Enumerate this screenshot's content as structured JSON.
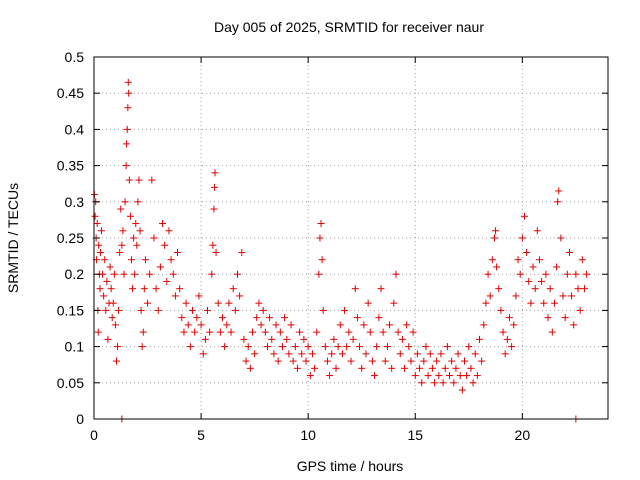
{
  "chart_data": {
    "type": "scatter",
    "title": "Day 005 of 2025, SRMTID for receiver naur",
    "xlabel": "GPS time / hours",
    "ylabel": "SRMTID / TECUs",
    "xlim": [
      0,
      24
    ],
    "ylim": [
      0,
      0.5
    ],
    "xticks": [
      0,
      5,
      10,
      15,
      20
    ],
    "yticks": [
      0,
      0.05,
      0.1,
      0.15,
      0.2,
      0.25,
      0.3,
      0.35,
      0.4,
      0.45,
      0.5
    ],
    "xtick_labels": [
      "0",
      "5",
      "10",
      "15",
      "20"
    ],
    "ytick_labels": [
      "0",
      "0.05",
      "0.1",
      "0.15",
      "0.2",
      "0.25",
      "0.3",
      "0.35",
      "0.4",
      "0.45",
      "0.5"
    ],
    "grid": true,
    "marker": "plus",
    "color": "#e00000",
    "series": [
      {
        "name": "SRMTID",
        "points": [
          [
            0.02,
            0.31
          ],
          [
            0.05,
            0.28
          ],
          [
            0.08,
            0.3
          ],
          [
            0.1,
            0.25
          ],
          [
            0.12,
            0.22
          ],
          [
            0.15,
            0.27
          ],
          [
            0.18,
            0.15
          ],
          [
            0.2,
            0.12
          ],
          [
            0.22,
            0.24
          ],
          [
            0.25,
            0.2
          ],
          [
            0.28,
            0.18
          ],
          [
            0.3,
            0.23
          ],
          [
            0.35,
            0.26
          ],
          [
            0.4,
            0.2
          ],
          [
            0.45,
            0.17
          ],
          [
            0.5,
            0.22
          ],
          [
            0.55,
            0.15
          ],
          [
            0.6,
            0.19
          ],
          [
            0.65,
            0.11
          ],
          [
            0.7,
            0.16
          ],
          [
            0.75,
            0.21
          ],
          [
            0.8,
            0.18
          ],
          [
            0.85,
            0.14
          ],
          [
            0.9,
            0.16
          ],
          [
            0.95,
            0.2
          ],
          [
            1.0,
            0.13
          ],
          [
            1.05,
            0.08
          ],
          [
            1.1,
            0.1
          ],
          [
            1.15,
            0.15
          ],
          [
            1.2,
            0.23
          ],
          [
            1.25,
            0.29
          ],
          [
            1.3,
            0.24
          ],
          [
            1.35,
            0.26
          ],
          [
            1.4,
            0.2
          ],
          [
            1.45,
            0.3
          ],
          [
            1.5,
            0.35
          ],
          [
            1.52,
            0.38
          ],
          [
            1.55,
            0.4
          ],
          [
            1.58,
            0.43
          ],
          [
            1.6,
            0.465
          ],
          [
            1.62,
            0.45
          ],
          [
            1.65,
            0.33
          ],
          [
            1.7,
            0.28
          ],
          [
            1.75,
            0.22
          ],
          [
            1.8,
            0.18
          ],
          [
            1.85,
            0.25
          ],
          [
            1.9,
            0.2
          ],
          [
            1.95,
            0.27
          ],
          [
            2.0,
            0.24
          ],
          [
            2.05,
            0.3
          ],
          [
            2.1,
            0.33
          ],
          [
            2.15,
            0.26
          ],
          [
            2.2,
            0.15
          ],
          [
            2.25,
            0.1
          ],
          [
            2.3,
            0.12
          ],
          [
            2.35,
            0.18
          ],
          [
            2.4,
            0.22
          ],
          [
            2.5,
            0.16
          ],
          [
            2.6,
            0.2
          ],
          [
            2.7,
            0.33
          ],
          [
            2.8,
            0.25
          ],
          [
            2.9,
            0.18
          ],
          [
            3.0,
            0.15
          ],
          [
            3.1,
            0.21
          ],
          [
            3.2,
            0.27
          ],
          [
            3.3,
            0.24
          ],
          [
            3.4,
            0.19
          ],
          [
            3.5,
            0.26
          ],
          [
            3.6,
            0.22
          ],
          [
            3.7,
            0.2
          ],
          [
            3.8,
            0.17
          ],
          [
            3.9,
            0.23
          ],
          [
            4.0,
            0.18
          ],
          [
            4.1,
            0.14
          ],
          [
            4.2,
            0.12
          ],
          [
            4.3,
            0.16
          ],
          [
            4.4,
            0.13
          ],
          [
            4.5,
            0.1
          ],
          [
            4.6,
            0.15
          ],
          [
            4.7,
            0.12
          ],
          [
            4.8,
            0.14
          ],
          [
            4.9,
            0.17
          ],
          [
            5.0,
            0.13
          ],
          [
            5.1,
            0.09
          ],
          [
            5.2,
            0.11
          ],
          [
            5.3,
            0.15
          ],
          [
            5.4,
            0.12
          ],
          [
            5.5,
            0.2
          ],
          [
            5.55,
            0.24
          ],
          [
            5.6,
            0.29
          ],
          [
            5.63,
            0.32
          ],
          [
            5.65,
            0.34
          ],
          [
            5.7,
            0.23
          ],
          [
            5.8,
            0.16
          ],
          [
            5.9,
            0.12
          ],
          [
            6.0,
            0.14
          ],
          [
            6.1,
            0.1
          ],
          [
            6.2,
            0.13
          ],
          [
            6.3,
            0.16
          ],
          [
            6.4,
            0.12
          ],
          [
            6.5,
            0.18
          ],
          [
            6.6,
            0.15
          ],
          [
            6.7,
            0.2
          ],
          [
            6.8,
            0.17
          ],
          [
            6.9,
            0.23
          ],
          [
            7.0,
            0.11
          ],
          [
            7.1,
            0.08
          ],
          [
            7.2,
            0.1
          ],
          [
            7.3,
            0.07
          ],
          [
            7.4,
            0.12
          ],
          [
            7.5,
            0.09
          ],
          [
            7.6,
            0.14
          ],
          [
            7.7,
            0.16
          ],
          [
            7.8,
            0.13
          ],
          [
            7.9,
            0.15
          ],
          [
            8.0,
            0.12
          ],
          [
            8.1,
            0.1
          ],
          [
            8.2,
            0.14
          ],
          [
            8.3,
            0.11
          ],
          [
            8.4,
            0.09
          ],
          [
            8.5,
            0.13
          ],
          [
            8.6,
            0.08
          ],
          [
            8.7,
            0.12
          ],
          [
            8.8,
            0.1
          ],
          [
            8.9,
            0.14
          ],
          [
            9.0,
            0.11
          ],
          [
            9.1,
            0.09
          ],
          [
            9.2,
            0.13
          ],
          [
            9.3,
            0.08
          ],
          [
            9.4,
            0.1
          ],
          [
            9.5,
            0.07
          ],
          [
            9.6,
            0.12
          ],
          [
            9.7,
            0.09
          ],
          [
            9.8,
            0.11
          ],
          [
            9.9,
            0.08
          ],
          [
            10.0,
            0.1
          ],
          [
            10.1,
            0.06
          ],
          [
            10.2,
            0.09
          ],
          [
            10.3,
            0.07
          ],
          [
            10.4,
            0.12
          ],
          [
            10.5,
            0.2
          ],
          [
            10.55,
            0.25
          ],
          [
            10.6,
            0.27
          ],
          [
            10.65,
            0.22
          ],
          [
            10.7,
            0.15
          ],
          [
            10.8,
            0.1
          ],
          [
            10.9,
            0.08
          ],
          [
            11.0,
            0.06
          ],
          [
            11.1,
            0.09
          ],
          [
            11.2,
            0.11
          ],
          [
            11.3,
            0.07
          ],
          [
            11.4,
            0.1
          ],
          [
            11.5,
            0.13
          ],
          [
            11.6,
            0.09
          ],
          [
            11.7,
            0.15
          ],
          [
            11.8,
            0.1
          ],
          [
            11.9,
            0.12
          ],
          [
            12.0,
            0.08
          ],
          [
            12.1,
            0.11
          ],
          [
            12.2,
            0.18
          ],
          [
            12.3,
            0.14
          ],
          [
            12.4,
            0.1
          ],
          [
            12.5,
            0.07
          ],
          [
            12.6,
            0.13
          ],
          [
            12.7,
            0.09
          ],
          [
            12.8,
            0.16
          ],
          [
            12.9,
            0.12
          ],
          [
            13.0,
            0.08
          ],
          [
            13.1,
            0.06
          ],
          [
            13.2,
            0.1
          ],
          [
            13.3,
            0.14
          ],
          [
            13.4,
            0.18
          ],
          [
            13.5,
            0.12
          ],
          [
            13.6,
            0.08
          ],
          [
            13.7,
            0.1
          ],
          [
            13.8,
            0.13
          ],
          [
            13.9,
            0.07
          ],
          [
            14.0,
            0.16
          ],
          [
            14.1,
            0.2
          ],
          [
            14.2,
            0.12
          ],
          [
            14.3,
            0.09
          ],
          [
            14.4,
            0.11
          ],
          [
            14.5,
            0.07
          ],
          [
            14.6,
            0.13
          ],
          [
            14.7,
            0.1
          ],
          [
            14.8,
            0.08
          ],
          [
            14.9,
            0.12
          ],
          [
            15.0,
            0.06
          ],
          [
            15.1,
            0.09
          ],
          [
            15.2,
            0.07
          ],
          [
            15.3,
            0.05
          ],
          [
            15.4,
            0.08
          ],
          [
            15.5,
            0.1
          ],
          [
            15.6,
            0.06
          ],
          [
            15.7,
            0.09
          ],
          [
            15.8,
            0.07
          ],
          [
            15.9,
            0.05
          ],
          [
            16.0,
            0.08
          ],
          [
            16.1,
            0.06
          ],
          [
            16.2,
            0.09
          ],
          [
            16.3,
            0.05
          ],
          [
            16.4,
            0.07
          ],
          [
            16.5,
            0.1
          ],
          [
            16.6,
            0.06
          ],
          [
            16.7,
            0.08
          ],
          [
            16.8,
            0.05
          ],
          [
            16.9,
            0.07
          ],
          [
            17.0,
            0.09
          ],
          [
            17.1,
            0.06
          ],
          [
            17.2,
            0.04
          ],
          [
            17.3,
            0.08
          ],
          [
            17.4,
            0.06
          ],
          [
            17.5,
            0.1
          ],
          [
            17.6,
            0.07
          ],
          [
            17.7,
            0.05
          ],
          [
            17.8,
            0.09
          ],
          [
            17.9,
            0.06
          ],
          [
            18.0,
            0.11
          ],
          [
            18.1,
            0.08
          ],
          [
            18.2,
            0.13
          ],
          [
            18.3,
            0.16
          ],
          [
            18.4,
            0.2
          ],
          [
            18.5,
            0.17
          ],
          [
            18.6,
            0.22
          ],
          [
            18.7,
            0.25
          ],
          [
            18.75,
            0.26
          ],
          [
            18.8,
            0.21
          ],
          [
            18.9,
            0.18
          ],
          [
            19.0,
            0.15
          ],
          [
            19.1,
            0.12
          ],
          [
            19.2,
            0.09
          ],
          [
            19.3,
            0.11
          ],
          [
            19.4,
            0.14
          ],
          [
            19.5,
            0.1
          ],
          [
            19.6,
            0.13
          ],
          [
            19.7,
            0.17
          ],
          [
            19.8,
            0.22
          ],
          [
            19.9,
            0.2
          ],
          [
            20.0,
            0.25
          ],
          [
            20.1,
            0.28
          ],
          [
            20.2,
            0.23
          ],
          [
            20.3,
            0.19
          ],
          [
            20.4,
            0.16
          ],
          [
            20.5,
            0.21
          ],
          [
            20.6,
            0.18
          ],
          [
            20.7,
            0.26
          ],
          [
            20.8,
            0.22
          ],
          [
            20.9,
            0.19
          ],
          [
            21.0,
            0.16
          ],
          [
            21.1,
            0.2
          ],
          [
            21.2,
            0.14
          ],
          [
            21.3,
            0.18
          ],
          [
            21.4,
            0.12
          ],
          [
            21.5,
            0.16
          ],
          [
            21.6,
            0.21
          ],
          [
            21.65,
            0.3
          ],
          [
            21.7,
            0.315
          ],
          [
            21.8,
            0.25
          ],
          [
            21.9,
            0.17
          ],
          [
            22.0,
            0.14
          ],
          [
            22.1,
            0.2
          ],
          [
            22.2,
            0.23
          ],
          [
            22.3,
            0.17
          ],
          [
            22.4,
            0.13
          ],
          [
            22.5,
            0.2
          ],
          [
            22.6,
            0.18
          ],
          [
            22.7,
            0.15
          ],
          [
            22.8,
            0.22
          ],
          [
            22.9,
            0.18
          ],
          [
            23.0,
            0.2
          ],
          [
            1.3,
            0.0
          ],
          [
            22.5,
            0.0
          ]
        ]
      }
    ]
  }
}
